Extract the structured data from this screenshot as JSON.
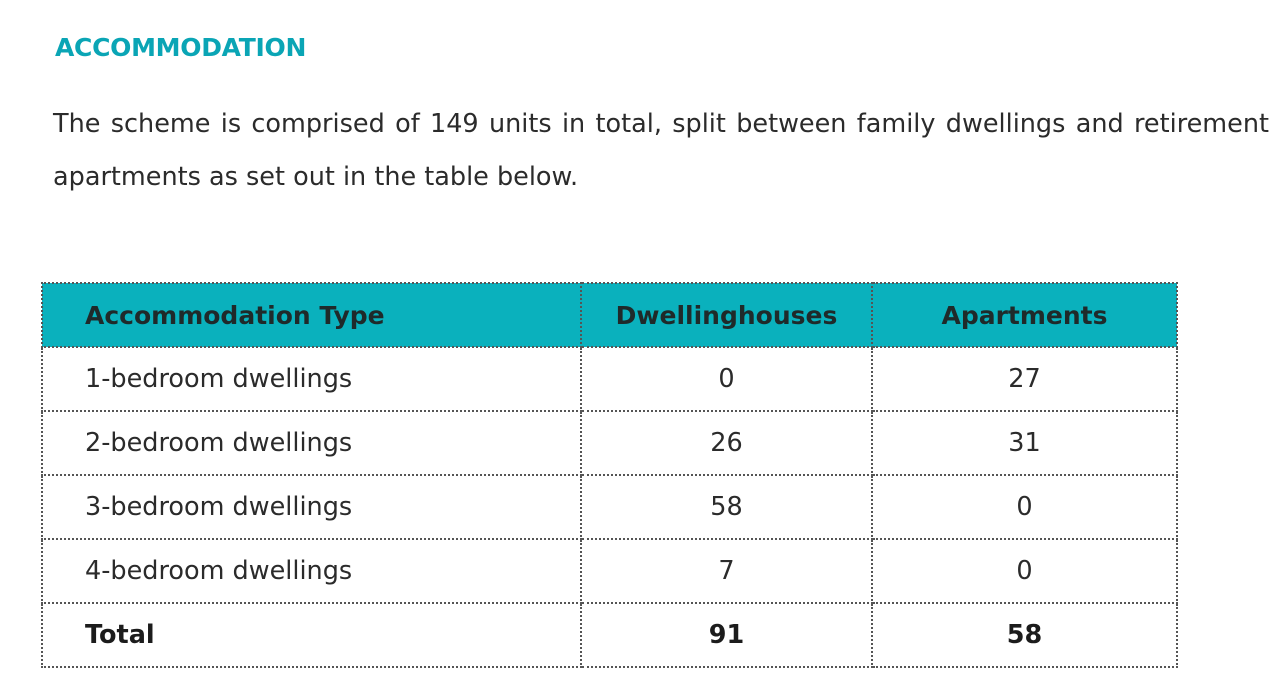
{
  "document": {
    "heading": "ACCOMMODATION",
    "intro": "The scheme is comprised of 149 units in total, split between family dwellings and retirement apartments as set out in the table below."
  },
  "table": {
    "headers": [
      "Accommodation Type",
      "Dwellinghouses",
      "Apartments"
    ],
    "rows": [
      [
        "1-bedroom dwellings",
        "0",
        "27"
      ],
      [
        "2-bedroom dwellings",
        "26",
        "31"
      ],
      [
        "3-bedroom dwellings",
        "58",
        "0"
      ],
      [
        "4-bedroom dwellings",
        "7",
        "0"
      ]
    ],
    "total": [
      "Total",
      "91",
      "58"
    ]
  },
  "colors": {
    "heading": "#0aa5b5",
    "table_header_bg": "#0ab1bd",
    "text": "#2b2b2b"
  }
}
